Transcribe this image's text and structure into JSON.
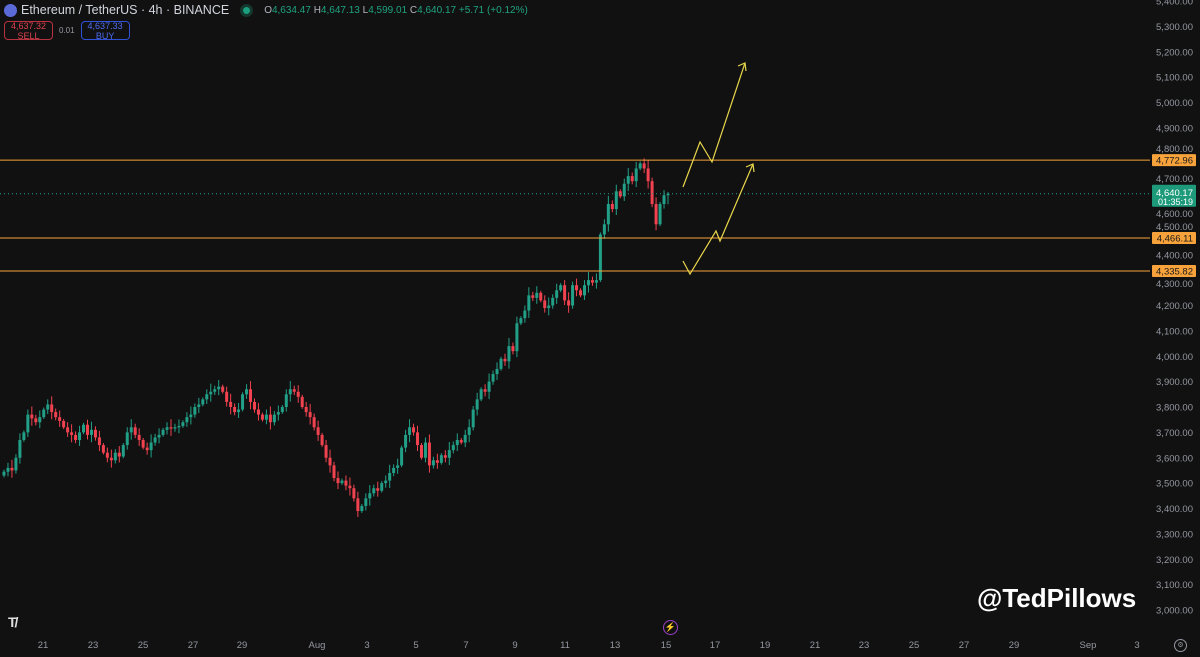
{
  "header": {
    "title": "Ethereum / TetherUS · 4h · BINANCE",
    "o_label": "O",
    "o": "4,634.47",
    "h_label": "H",
    "h": "4,647.13",
    "l_label": "L",
    "l": "4,599.01",
    "c_label": "C",
    "c": "4,640.17",
    "change": "+5.71 (+0.12%)"
  },
  "trade": {
    "sell_price": "4,637.32",
    "sell_label": "SELL",
    "spread": "0.01",
    "buy_price": "4,637.33",
    "buy_label": "BUY"
  },
  "watermark": "@TedPillows",
  "logo": "TV",
  "colors": {
    "up": "#22a087",
    "down": "#f0424f",
    "level": "#f7a23a",
    "drawing": "#e8d64a",
    "background": "#111112"
  },
  "chart_data": {
    "type": "candlestick",
    "interval": "4h",
    "ylim": [
      3000,
      5400
    ],
    "y_ticks": [
      "5,400.00",
      "5,300.00",
      "5,200.00",
      "5,100.00",
      "5,000.00",
      "4,900.00",
      "4,800.00",
      "4,700.00",
      "4,600.00",
      "4,500.00",
      "4,400.00",
      "4,300.00",
      "4,200.00",
      "4,100.00",
      "4,000.00",
      "3,900.00",
      "3,800.00",
      "3,700.00",
      "3,600.00",
      "3,500.00",
      "3,400.00",
      "3,300.00",
      "3,200.00",
      "3,100.00",
      "3,000.00"
    ],
    "x_ticks": [
      "21",
      "23",
      "25",
      "27",
      "29",
      "Aug",
      "3",
      "5",
      "7",
      "9",
      "11",
      "13",
      "15",
      "17",
      "19",
      "21",
      "23",
      "25",
      "27",
      "29",
      "Sep",
      "3"
    ],
    "first_open": 3530,
    "closes": [
      3545,
      3560,
      3550,
      3600,
      3670,
      3700,
      3770,
      3755,
      3740,
      3760,
      3790,
      3810,
      3780,
      3760,
      3745,
      3720,
      3700,
      3690,
      3670,
      3700,
      3730,
      3690,
      3710,
      3680,
      3650,
      3620,
      3600,
      3590,
      3620,
      3605,
      3650,
      3700,
      3720,
      3690,
      3670,
      3640,
      3630,
      3660,
      3680,
      3690,
      3710,
      3720,
      3715,
      3720,
      3725,
      3740,
      3760,
      3770,
      3800,
      3810,
      3830,
      3850,
      3860,
      3870,
      3880,
      3860,
      3820,
      3800,
      3780,
      3790,
      3850,
      3870,
      3820,
      3790,
      3770,
      3750,
      3770,
      3740,
      3770,
      3780,
      3800,
      3850,
      3870,
      3860,
      3840,
      3800,
      3780,
      3760,
      3720,
      3690,
      3650,
      3600,
      3570,
      3520,
      3500,
      3510,
      3490,
      3480,
      3440,
      3390,
      3410,
      3440,
      3460,
      3480,
      3470,
      3500,
      3510,
      3540,
      3560,
      3570,
      3640,
      3690,
      3720,
      3700,
      3650,
      3600,
      3660,
      3570,
      3590,
      3580,
      3610,
      3600,
      3630,
      3650,
      3670,
      3660,
      3690,
      3720,
      3790,
      3830,
      3870,
      3860,
      3900,
      3930,
      3950,
      3990,
      3980,
      4040,
      4020,
      4130,
      4150,
      4180,
      4240,
      4230,
      4250,
      4220,
      4190,
      4200,
      4230,
      4260,
      4280,
      4220,
      4200,
      4280,
      4260,
      4240,
      4280,
      4300,
      4290,
      4300,
      4480,
      4520,
      4600,
      4580,
      4650,
      4630,
      4680,
      4710,
      4690,
      4740,
      4760,
      4740,
      4690,
      4600,
      4520,
      4600,
      4634.47,
      4640.17
    ],
    "last_high": 4647.13,
    "last_low": 4599.01,
    "levels": [
      {
        "price": 4772.96,
        "label": "4,772.96"
      },
      {
        "price": 4466.11,
        "label": "4,466.11"
      },
      {
        "price": 4335.82,
        "label": "4,335.82"
      }
    ],
    "current": {
      "price": 4640.17,
      "label": "4,640.17",
      "countdown": "01:35:19"
    }
  }
}
